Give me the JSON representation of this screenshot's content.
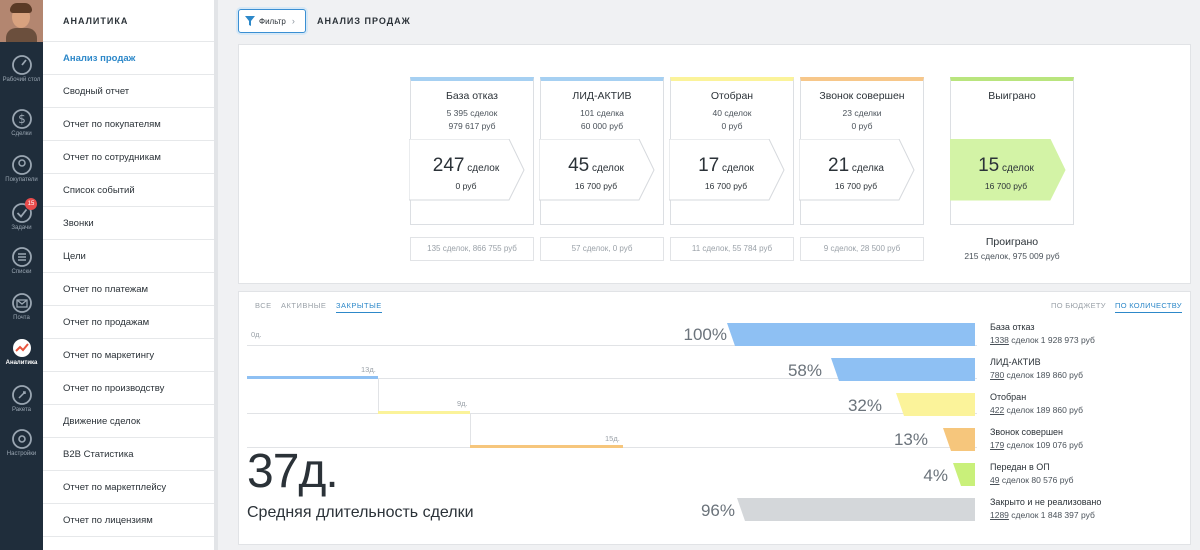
{
  "nav": [
    {
      "label": "Рабочий стол",
      "icon": "dashboard-icon"
    },
    {
      "label": "Сделки",
      "icon": "dollar-icon"
    },
    {
      "label": "Покупатели",
      "icon": "buyers-icon"
    },
    {
      "label": "Задачи",
      "icon": "check-icon",
      "badge": "15"
    },
    {
      "label": "Списки",
      "icon": "lists-icon"
    },
    {
      "label": "Почта",
      "icon": "mail-icon"
    },
    {
      "label": "Аналитика",
      "icon": "analytics-icon"
    },
    {
      "label": "Ракета",
      "icon": "rocket-icon"
    },
    {
      "label": "Настройки",
      "icon": "settings-icon"
    }
  ],
  "submenu": {
    "title": "АНАЛИТИКА",
    "items": [
      "Анализ продаж",
      "Сводный отчет",
      "Отчет по покупателям",
      "Отчет по сотрудникам",
      "Список событий",
      "Звонки",
      "Цели",
      "Отчет по платежам",
      "Отчет по продажам",
      "Отчет по маркетингу",
      "Отчет по производству",
      "Движение сделок",
      "B2B Статистика",
      "Отчет по маркетплейсу",
      "Отчет по лицензиям"
    ]
  },
  "topbar": {
    "filter_label": "Фильтр",
    "title": "АНАЛИЗ ПРОДАЖ"
  },
  "stages": [
    {
      "name": "База отказ",
      "deals": "5 395 сделок",
      "rub": "979 617 руб",
      "active_n": "247",
      "active_unit": "сделок",
      "active_rub": "0 руб",
      "lost": "135 сделок, 866 755 руб",
      "color": "#a6d0f2"
    },
    {
      "name": "ЛИД-АКТИВ",
      "deals": "101 сделка",
      "rub": "60 000 руб",
      "active_n": "45",
      "active_unit": "сделок",
      "active_rub": "16 700 руб",
      "lost": "57 сделок, 0 руб",
      "color": "#a6d0f2"
    },
    {
      "name": "Отобран",
      "deals": "40 сделок",
      "rub": "0 руб",
      "active_n": "17",
      "active_unit": "сделок",
      "active_rub": "16 700 руб",
      "lost": "11 сделок, 55 784 руб",
      "color": "#fbf39a"
    },
    {
      "name": "Звонок совершен",
      "deals": "23 сделки",
      "rub": "0 руб",
      "active_n": "21",
      "active_unit": "сделка",
      "active_rub": "16 700 руб",
      "lost": "9 сделок, 28 500 руб",
      "color": "#f7c78a"
    }
  ],
  "won": {
    "name": "Выиграно",
    "n": "15",
    "unit": "сделок",
    "rub": "16 700 руб",
    "color": "#d3f3a6"
  },
  "lost_total": {
    "label": "Проиграно",
    "detail": "215 сделок, 975 009 руб"
  },
  "tabs": {
    "all": "ВСЕ",
    "active": "АКТИВНЫЕ",
    "closed": "ЗАКРЫТЫЕ",
    "by_budget": "ПО БЮДЖЕТУ",
    "by_count": "ПО КОЛИЧЕСТВУ"
  },
  "funnel": [
    {
      "pct": "100%",
      "fraction": 1.0,
      "name": "База отказ",
      "count": "1338",
      "rest": " сделок 1 928 973 руб",
      "color": "#8ec0f3"
    },
    {
      "pct": "58%",
      "fraction": 0.58,
      "name": "ЛИД-АКТИВ",
      "count": "780",
      "rest": " сделок 189 860 руб",
      "color": "#8ec0f3"
    },
    {
      "pct": "32%",
      "fraction": 0.32,
      "name": "Отобран",
      "count": "422",
      "rest": " сделок 189 860 руб",
      "color": "#fbf39a"
    },
    {
      "pct": "13%",
      "fraction": 0.13,
      "name": "Звонок совершен",
      "count": "179",
      "rest": " сделок 109 076 руб",
      "color": "#f6c67c"
    },
    {
      "pct": "4%",
      "fraction": 0.04,
      "name": "Передан в ОП",
      "count": "49",
      "rest": " сделок 80 576 руб",
      "color": "#c9f07a"
    },
    {
      "pct": "96%",
      "fraction": 0.96,
      "name": "Закрыто и не реализовано",
      "count": "1289",
      "rest": " сделок 1 848 397 руб",
      "color": "#d4d7da"
    }
  ],
  "timeline": {
    "d0": "0д.",
    "d1": "13д.",
    "d2": "9д.",
    "d3": "15д."
  },
  "avg": {
    "value": "37д.",
    "label": "Средняя длительность сделки"
  }
}
